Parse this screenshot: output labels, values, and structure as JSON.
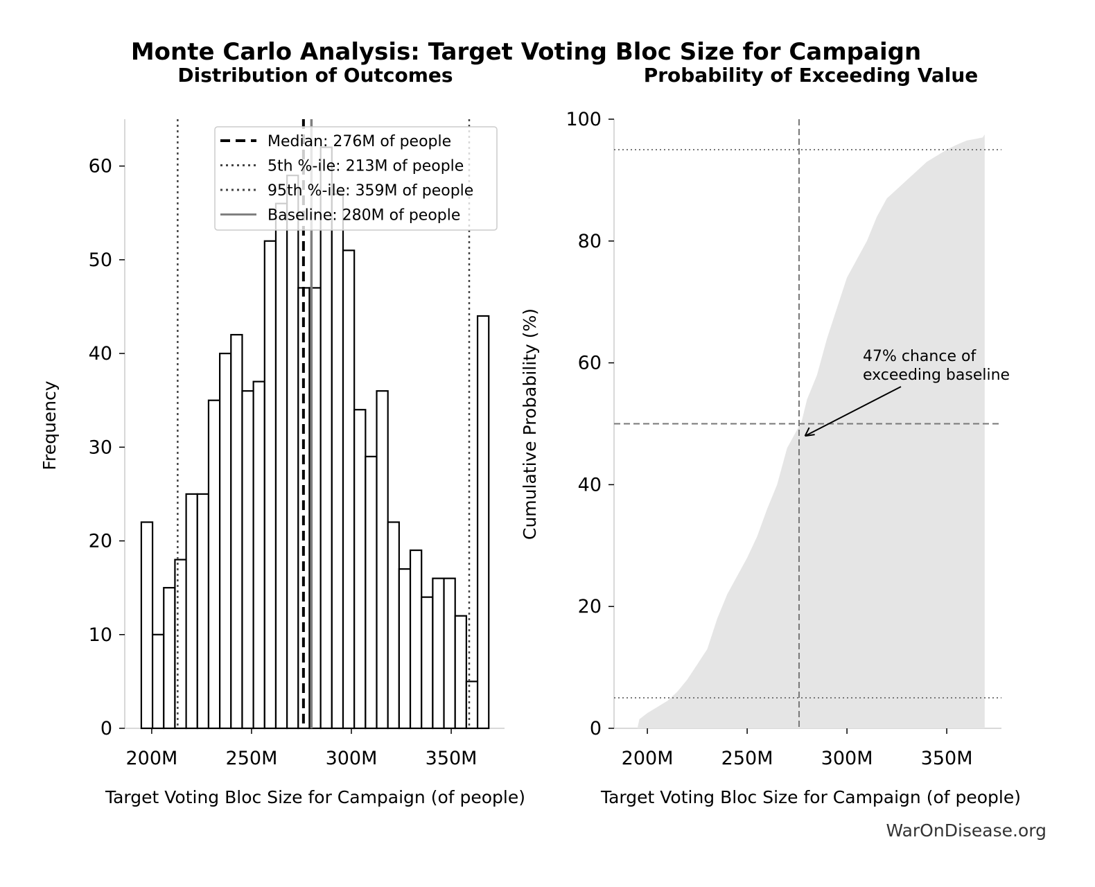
{
  "chart_data": [
    {
      "type": "bar",
      "title": "Distribution of Outcomes",
      "suptitle": "Monte Carlo Analysis: Target Voting Bloc Size for Campaign",
      "xlabel": "Target Voting Bloc Size for Campaign (of people)",
      "ylabel": "Frequency",
      "xlim": [
        186.5,
        376.7
      ],
      "ylim": [
        0,
        65
      ],
      "xticks": [
        200,
        250,
        300,
        350
      ],
      "xtick_labels": [
        "200M",
        "250M",
        "300M",
        "350M"
      ],
      "yticks": [
        0,
        10,
        20,
        30,
        40,
        50,
        60
      ],
      "ytick_labels": [
        "0",
        "10",
        "20",
        "30",
        "40",
        "50",
        "60"
      ],
      "bin_start": 194.8,
      "bin_end": 368.8,
      "values": [
        22,
        10,
        15,
        18,
        25,
        25,
        35,
        40,
        42,
        36,
        37,
        52,
        56,
        59,
        47,
        47,
        62,
        57,
        51,
        34,
        29,
        36,
        22,
        17,
        19,
        14,
        16,
        16,
        12,
        5,
        44
      ],
      "reference_lines": [
        {
          "label": "Median: 276M of people",
          "x": 276,
          "style": "dashed",
          "color": "#000000"
        },
        {
          "label": "5th %-ile: 213M of people",
          "x": 213,
          "style": "dotted",
          "color": "#444444"
        },
        {
          "label": "95th %-ile: 359M of people",
          "x": 359,
          "style": "dotted",
          "color": "#444444"
        },
        {
          "label": "Baseline: 280M of people",
          "x": 280,
          "style": "solid",
          "color": "#808080"
        }
      ],
      "legend_placement": "top-right"
    },
    {
      "type": "area",
      "title": "Probability of Exceeding Value",
      "xlabel": "Target Voting Bloc Size for Campaign (of people)",
      "ylabel": "Cumulative Probability (%)",
      "xlim": [
        183.3,
        377.4
      ],
      "ylim": [
        0,
        100
      ],
      "xticks": [
        200,
        250,
        300,
        350
      ],
      "xtick_labels": [
        "200M",
        "250M",
        "300M",
        "350M"
      ],
      "yticks": [
        0,
        20,
        40,
        60,
        80,
        100
      ],
      "ytick_labels": [
        "0",
        "20",
        "40",
        "60",
        "80",
        "100"
      ],
      "x": [
        195,
        196,
        200,
        205,
        210,
        215,
        220,
        225,
        230,
        235,
        240,
        245,
        250,
        255,
        260,
        265,
        270,
        275,
        277,
        280,
        285,
        290,
        295,
        300,
        305,
        310,
        315,
        320,
        325,
        330,
        335,
        340,
        345,
        350,
        355,
        360,
        365,
        368,
        369,
        369
      ],
      "y": [
        0,
        1.5,
        2.5,
        3.5,
        4.5,
        6,
        8,
        10.5,
        13,
        18,
        22,
        25,
        28,
        31.5,
        36,
        40,
        46,
        49,
        50,
        54,
        58,
        64,
        69,
        74,
        77,
        80,
        84,
        87,
        88.5,
        90,
        91.5,
        93,
        94,
        95,
        95.8,
        96.5,
        96.8,
        97,
        97.5,
        100
      ],
      "fill_color": "#e5e5e5",
      "vline": {
        "x": 276,
        "style": "dashed"
      },
      "hlines": [
        {
          "y": 50,
          "style": "dashed"
        },
        {
          "y": 5,
          "style": "dotted"
        },
        {
          "y": 95,
          "style": "dotted"
        }
      ],
      "annotation": {
        "lines": [
          "47% chance of",
          "exceeding baseline"
        ],
        "x": 279,
        "y": 48
      }
    }
  ],
  "footer": "WarOnDisease.org"
}
